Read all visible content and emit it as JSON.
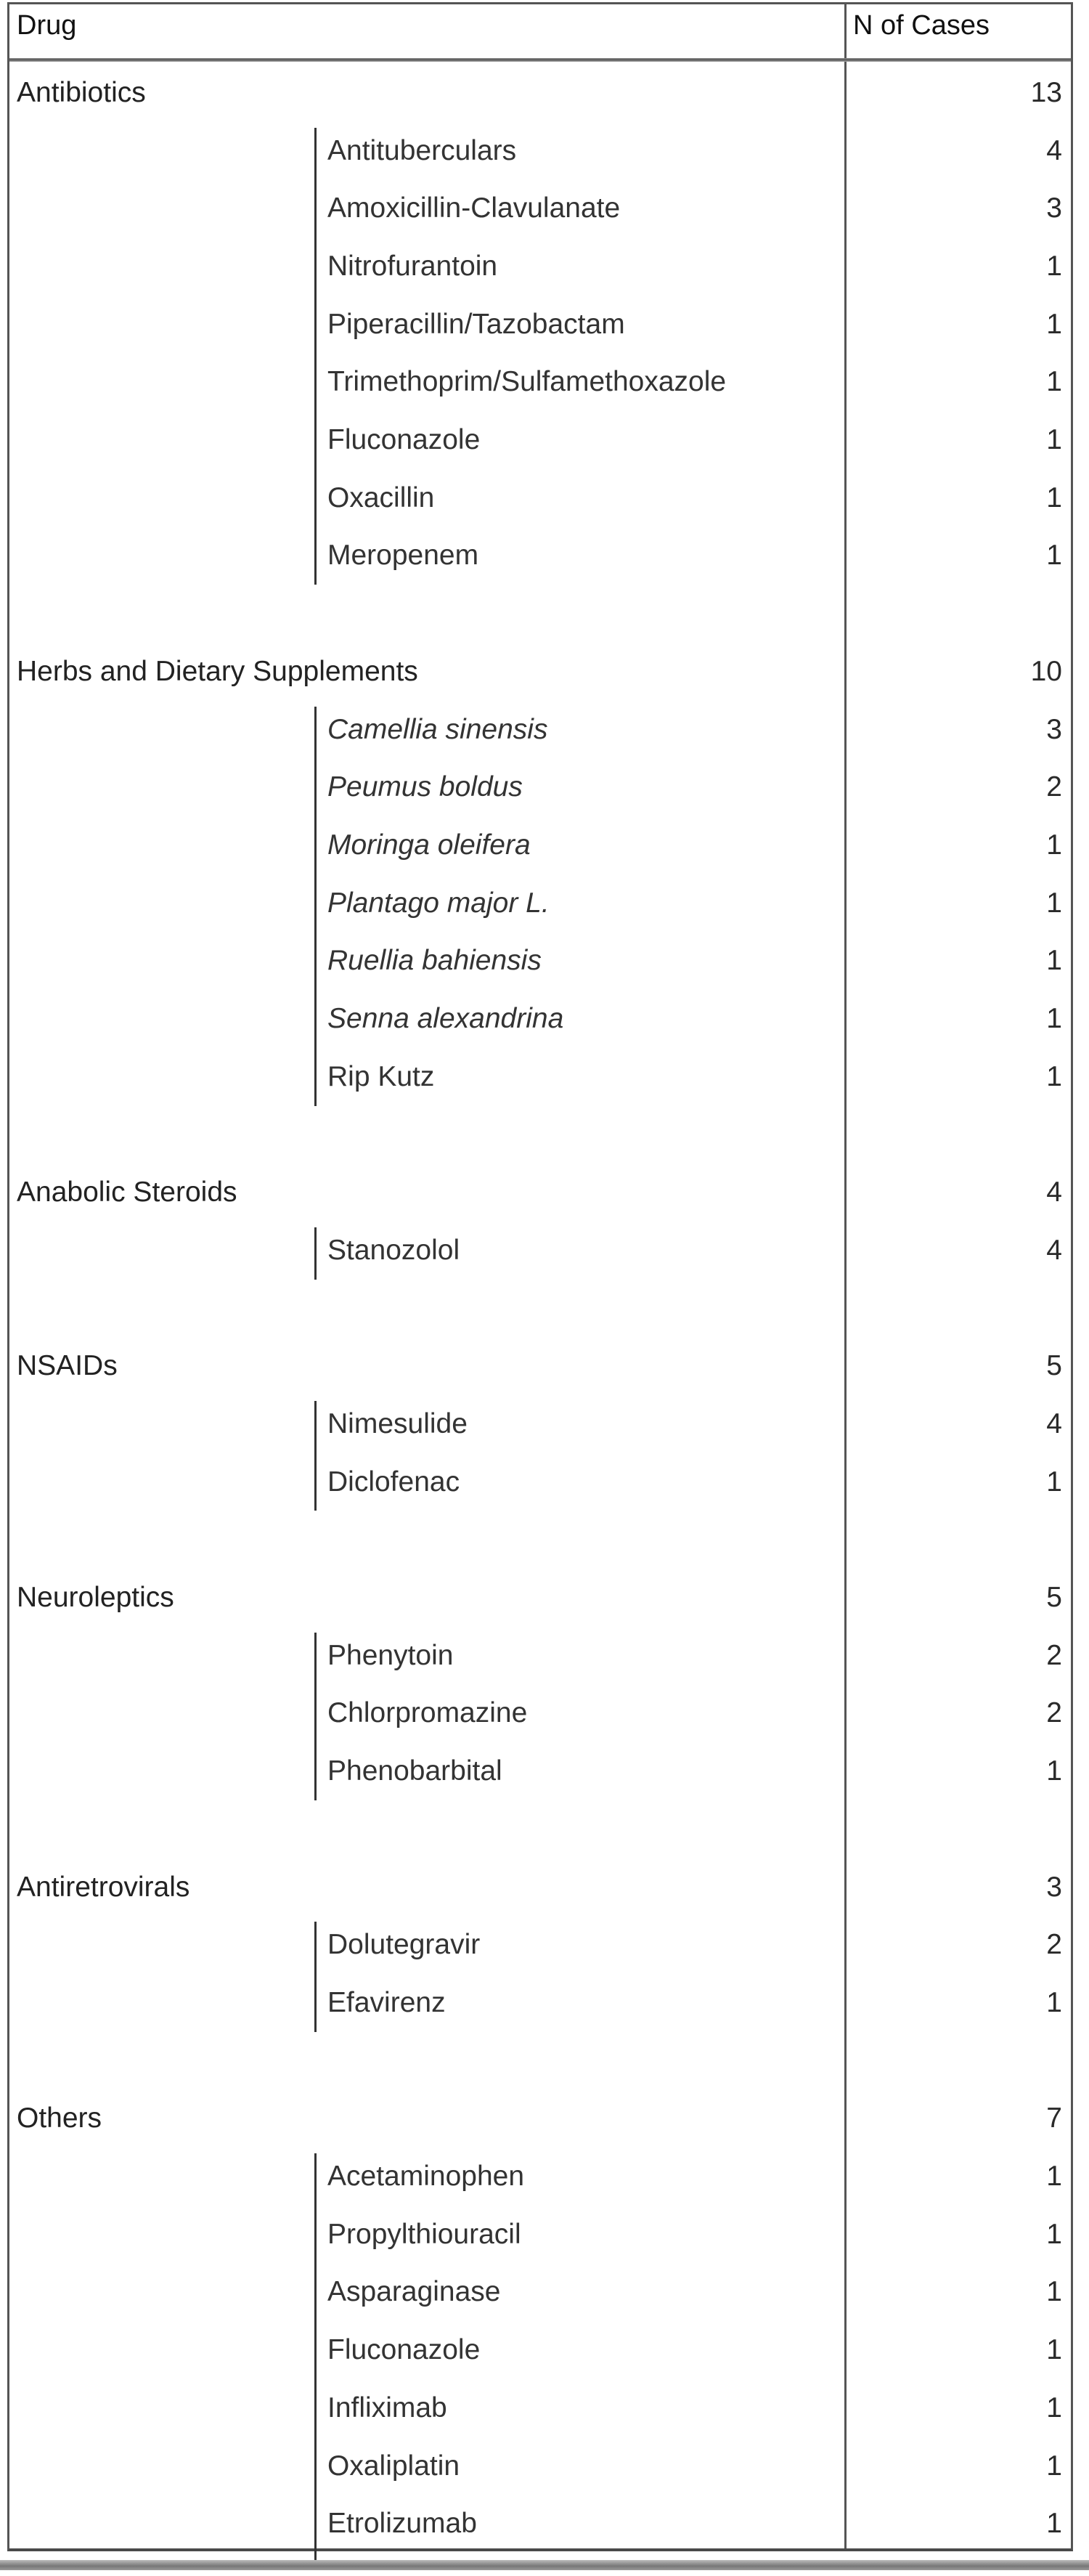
{
  "header": {
    "drug": "Drug",
    "cases": "N of Cases"
  },
  "groups": [
    {
      "name": "Antibiotics",
      "count": "13",
      "items": [
        {
          "name": "Antituberculars",
          "count": "4"
        },
        {
          "name": "Amoxicillin-Clavulanate",
          "count": "3"
        },
        {
          "name": "Nitrofurantoin",
          "count": "1"
        },
        {
          "name": "Piperacillin/Tazobactam",
          "count": "1"
        },
        {
          "name": "Trimethoprim/Sulfamethoxazole",
          "count": "1"
        },
        {
          "name": "Fluconazole",
          "count": "1"
        },
        {
          "name": "Oxacillin",
          "count": "1"
        },
        {
          "name": "Meropenem",
          "count": "1"
        }
      ]
    },
    {
      "name": "Herbs and Dietary Supplements",
      "count": "10",
      "items": [
        {
          "name": "Camellia sinensis",
          "count": "3",
          "italic": true
        },
        {
          "name": "Peumus boldus",
          "count": "2",
          "italic": true
        },
        {
          "name": "Moringa oleifera",
          "count": "1",
          "italic": true
        },
        {
          "name": "Plantago major L.",
          "count": "1",
          "italic": true
        },
        {
          "name": "Ruellia bahiensis",
          "count": "1",
          "italic": true
        },
        {
          "name": "Senna alexandrina",
          "count": "1",
          "italic": true
        },
        {
          "name": "Rip Kutz",
          "count": "1"
        }
      ]
    },
    {
      "name": "Anabolic Steroids",
      "count": "4",
      "items": [
        {
          "name": "Stanozolol",
          "count": "4"
        }
      ]
    },
    {
      "name": "NSAIDs",
      "count": "5",
      "items": [
        {
          "name": "Nimesulide",
          "count": "4"
        },
        {
          "name": "Diclofenac",
          "count": "1"
        }
      ]
    },
    {
      "name": "Neuroleptics",
      "count": "5",
      "items": [
        {
          "name": "Phenytoin",
          "count": "2"
        },
        {
          "name": "Chlorpromazine",
          "count": "2"
        },
        {
          "name": "Phenobarbital",
          "count": "1"
        }
      ]
    },
    {
      "name": "Antiretrovirals",
      "count": "3",
      "items": [
        {
          "name": "Dolutegravir",
          "count": "2"
        },
        {
          "name": "Efavirenz",
          "count": "1"
        }
      ]
    },
    {
      "name": "Others",
      "count": "7",
      "items": [
        {
          "name": "Acetaminophen",
          "count": "1"
        },
        {
          "name": "Propylthiouracil",
          "count": "1"
        },
        {
          "name": "Asparaginase",
          "count": "1"
        },
        {
          "name": "Fluconazole",
          "count": "1"
        },
        {
          "name": "Infliximab",
          "count": "1"
        },
        {
          "name": "Oxaliplatin",
          "count": "1"
        },
        {
          "name": "Etrolizumab",
          "count": "1"
        }
      ]
    }
  ]
}
